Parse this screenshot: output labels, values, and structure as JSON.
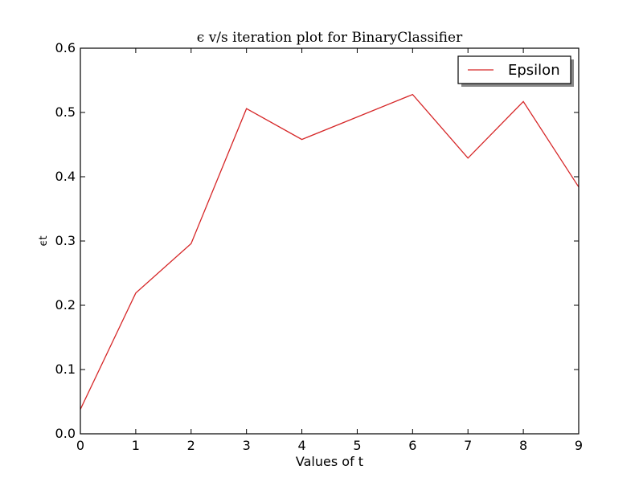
{
  "chart_data": {
    "type": "line",
    "title": "ϵ v/s iteration plot for BinaryClassifier",
    "xlabel": "Values of t",
    "ylabel": "ϵt",
    "xlim": [
      0,
      9
    ],
    "ylim": [
      0.0,
      0.6
    ],
    "x_ticks": [
      "0",
      "1",
      "2",
      "3",
      "4",
      "5",
      "6",
      "7",
      "8",
      "9"
    ],
    "y_ticks": [
      "0.0",
      "0.1",
      "0.2",
      "0.3",
      "0.4",
      "0.5",
      "0.6"
    ],
    "grid": false,
    "legend": {
      "position": "top-right",
      "entries": [
        "Epsilon"
      ]
    },
    "series": [
      {
        "name": "Epsilon",
        "color": "#d62728",
        "x": [
          0,
          1,
          2,
          3,
          4,
          5,
          6,
          7,
          8,
          9
        ],
        "values": [
          0.038,
          0.219,
          0.296,
          0.506,
          0.458,
          0.493,
          0.528,
          0.429,
          0.517,
          0.384
        ]
      }
    ]
  }
}
